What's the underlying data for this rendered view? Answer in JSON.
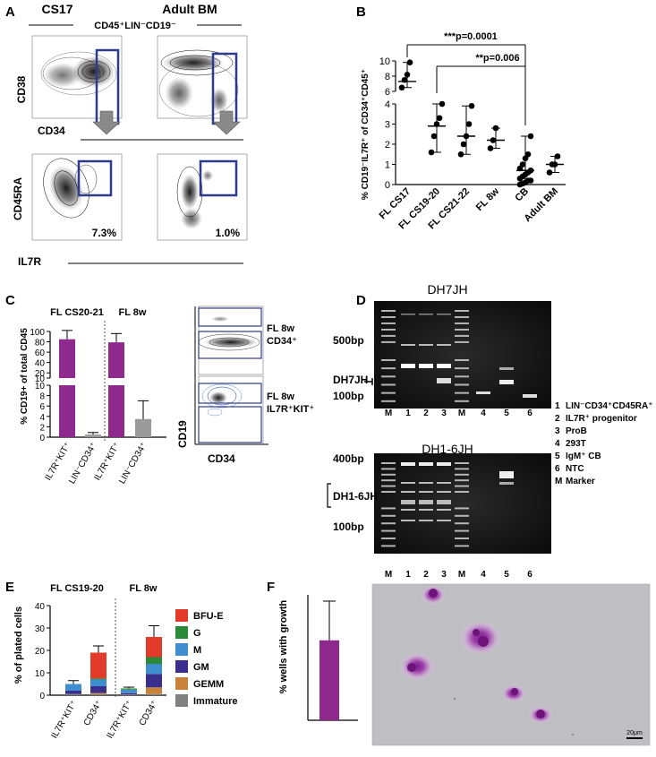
{
  "panels": {
    "a": {
      "letter": "A",
      "col1_title": "CS17",
      "col2_title": "Adult BM",
      "gate_label": "CD45⁺LIN⁻CD19⁻",
      "row1_y": "CD38",
      "row1_x": "CD34",
      "row2_y": "CD45RA",
      "row2_x": "IL7R",
      "pct_left": "7.3%",
      "pct_right": "1.0%"
    },
    "b": {
      "letter": "B",
      "ylabel": "% CD19⁻IL7R⁺ of CD34⁺CD45⁺",
      "sig1": "***p=0.0001",
      "sig2": "**p=0.006"
    },
    "c": {
      "letter": "C",
      "group1": "FL CS20-21",
      "group2": "FL 8w",
      "ylabel": "% CD19+ of total CD45",
      "flow_label1_a": "FL 8w",
      "flow_label1_b": "CD34⁺",
      "flow_label2_a": "FL 8w",
      "flow_label2_b": "IL7R⁺KIT⁺",
      "flow_y": "CD19",
      "flow_x": "CD34"
    },
    "d": {
      "letter": "D",
      "gel1_title": "DH7JH",
      "gel2_title": "DH1-6JH",
      "gel1_markers": [
        "500bp",
        "DH7JH",
        "100bp"
      ],
      "gel2_markers": [
        "400bp",
        "DH1-6JH",
        "100bp"
      ],
      "lanes": [
        "M",
        "1",
        "2",
        "3",
        "M",
        "4",
        "5",
        "6"
      ],
      "legend": [
        {
          "key": "1",
          "text": "LIN⁻CD34⁺CD45RA⁺"
        },
        {
          "key": "2",
          "text": "IL7R⁺ progenitor"
        },
        {
          "key": "3",
          "text": "ProB"
        },
        {
          "key": "4",
          "text": "293T"
        },
        {
          "key": "5",
          "text": "IgM⁺ CB"
        },
        {
          "key": "6",
          "text": "NTC"
        },
        {
          "key": "M",
          "text": "Marker"
        }
      ]
    },
    "e": {
      "letter": "E",
      "group1": "FL CS19-20",
      "group2": "FL 8w",
      "ylabel": "% of plated cells"
    },
    "f": {
      "letter": "F",
      "ylabel": "% wells with growth",
      "scale_bar": "20μm"
    }
  },
  "chart_data": [
    {
      "panel": "B",
      "type": "scatter",
      "categories": [
        "FL CS17",
        "FL CS19-20",
        "FL CS21-22",
        "FL 8w",
        "CB",
        "Adult BM"
      ],
      "y_axis": "broken",
      "y_ticks_lower": [
        0,
        1,
        2,
        3,
        4
      ],
      "y_ticks_upper": [
        6,
        8,
        10
      ],
      "ylim": [
        0,
        10
      ],
      "points": [
        [
          6.5,
          7.5,
          8.2,
          9.8
        ],
        [
          1.6,
          2.4,
          3.0,
          3.3,
          4.0
        ],
        [
          1.5,
          2.0,
          2.4,
          3.0,
          3.9
        ],
        [
          1.8,
          2.2,
          2.8
        ],
        [
          0.0,
          0.05,
          0.1,
          0.2,
          0.2,
          0.3,
          0.4,
          0.5,
          0.6,
          0.7,
          0.8,
          1.0,
          1.3,
          1.5,
          2.4
        ],
        [
          0.6,
          1.0,
          1.0,
          1.4
        ]
      ],
      "medians": [
        7.3,
        2.9,
        2.4,
        2.2,
        0.7,
        1.0
      ]
    },
    {
      "panel": "C",
      "type": "bar",
      "categories": [
        "IL7R⁺KIT⁺",
        "LIN⁻CD34⁺",
        "IL7R⁺KIT⁺",
        "LIN⁻CD34⁺"
      ],
      "values": [
        85,
        0.5,
        79,
        3.5
      ],
      "errors": [
        17,
        0.4,
        17,
        3.5
      ],
      "colors": [
        "#8e2a8e",
        "#9a9a9a",
        "#8e2a8e",
        "#9a9a9a"
      ],
      "y_axis": "broken",
      "y_ticks_lower": [
        0,
        2,
        4,
        6,
        8,
        10
      ],
      "y_ticks_upper": [
        10,
        20,
        40,
        60,
        80,
        100
      ],
      "ylim": [
        0,
        100
      ]
    },
    {
      "panel": "E",
      "type": "bar",
      "stacked": true,
      "categories": [
        "IL7R⁺KIT⁺",
        "CD34⁺",
        "IL7R⁺KIT⁺",
        "CD34⁺"
      ],
      "ylim": [
        0,
        40
      ],
      "y_ticks": [
        0,
        10,
        20,
        30,
        40
      ],
      "series": [
        {
          "name": "Immature",
          "color": "#808080",
          "values": [
            0.5,
            0.5,
            0.4,
            0.5
          ]
        },
        {
          "name": "GEMM",
          "color": "#c8823a",
          "values": [
            0,
            0.5,
            0,
            3.0
          ]
        },
        {
          "name": "GM",
          "color": "#3a2f8c",
          "values": [
            1.5,
            3.0,
            0.5,
            6.0
          ]
        },
        {
          "name": "M",
          "color": "#3f8fd0",
          "values": [
            3.0,
            3.0,
            1.6,
            4.5
          ]
        },
        {
          "name": "G",
          "color": "#2a8a3a",
          "values": [
            0,
            0.5,
            0.5,
            3.0
          ]
        },
        {
          "name": "BFU-E",
          "color": "#e23b2a",
          "values": [
            0,
            11.5,
            0,
            9.0
          ]
        }
      ],
      "totals_error": [
        1.5,
        3.0,
        0.6,
        5.0
      ]
    },
    {
      "panel": "F",
      "type": "bar",
      "categories": [
        ""
      ],
      "values": [
        25.5
      ],
      "errors": [
        12.5
      ],
      "color": "#8e2a8e"
    }
  ]
}
